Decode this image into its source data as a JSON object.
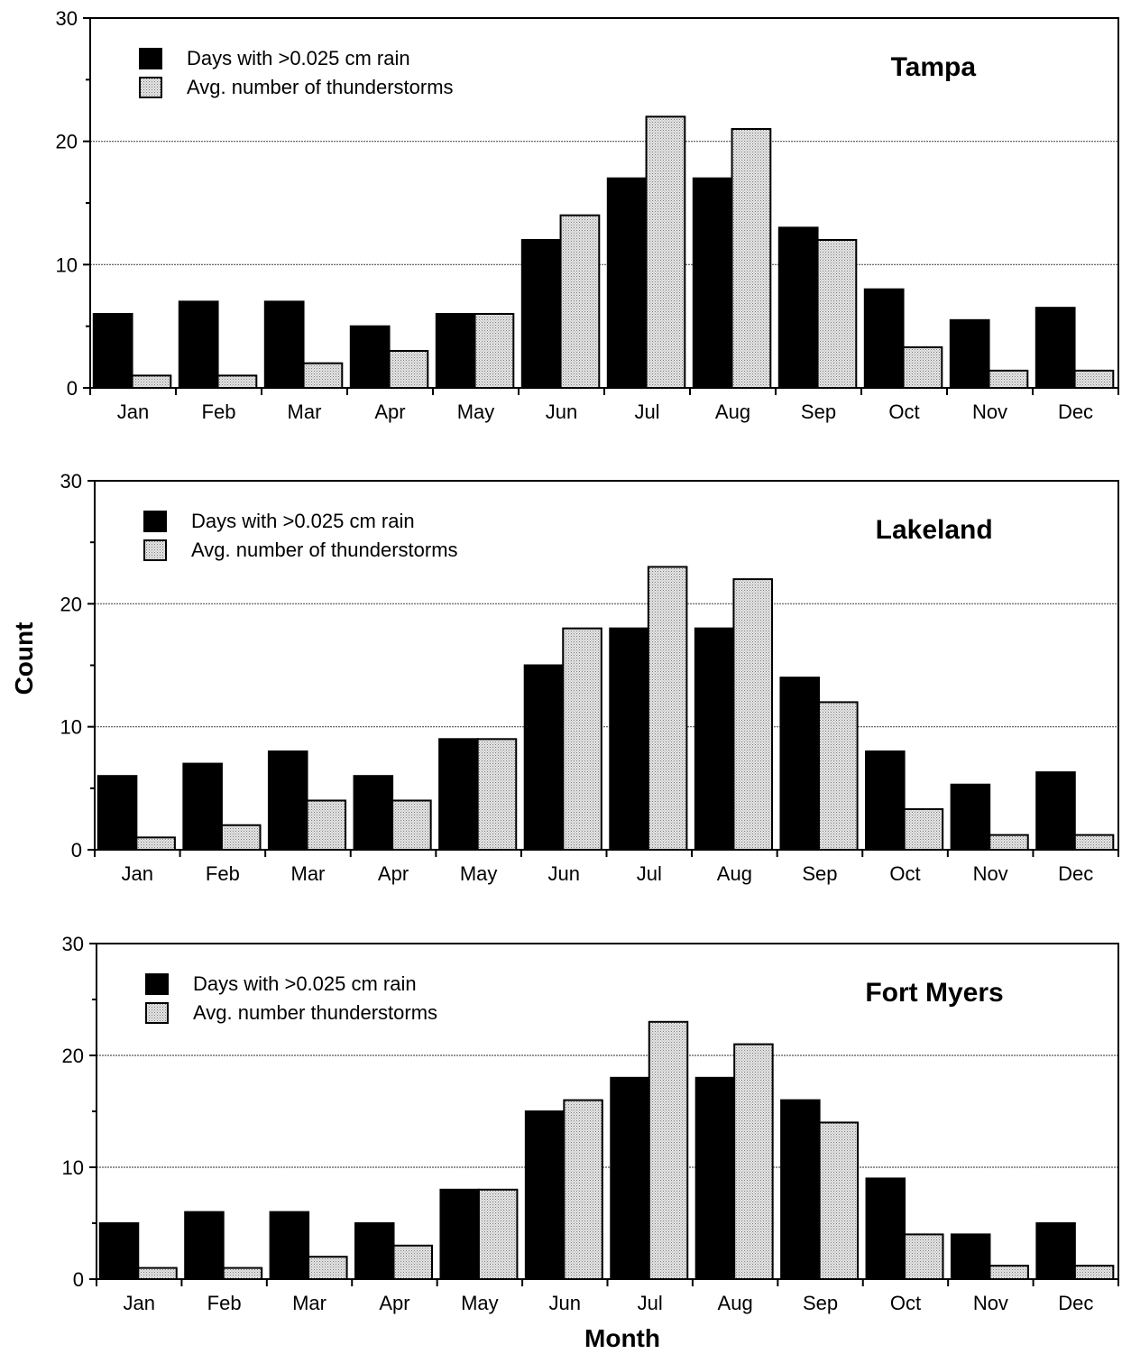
{
  "chart_data": {
    "type": "bar",
    "ylabel": "Count",
    "xlabel": "Month",
    "ylim": [
      0,
      30
    ],
    "yticks": [
      0,
      10,
      20,
      30
    ],
    "grid": true,
    "legend_position": "top-left",
    "categories": [
      "Jan",
      "Feb",
      "Mar",
      "Apr",
      "May",
      "Jun",
      "Jul",
      "Aug",
      "Sep",
      "Oct",
      "Nov",
      "Dec"
    ],
    "colors": {
      "rain": "#000000",
      "thunder": "#d2d2d2",
      "grid": "#555555"
    },
    "panels": [
      {
        "title": "Tampa",
        "series": [
          {
            "name": "Days with >0.025 cm rain",
            "values": [
              6,
              7,
              7,
              5,
              6,
              12,
              17,
              17,
              13,
              8,
              5.5,
              6.5
            ]
          },
          {
            "name": "Avg. number of thunderstorms",
            "values": [
              1,
              1,
              2,
              3,
              6,
              14,
              22,
              21,
              12,
              3.3,
              1.4,
              1.4
            ]
          }
        ]
      },
      {
        "title": "Lakeland",
        "series": [
          {
            "name": "Days with >0.025 cm rain",
            "values": [
              6,
              7,
              8,
              6,
              9,
              15,
              18,
              18,
              14,
              8,
              5.3,
              6.3
            ]
          },
          {
            "name": "Avg. number of thunderstorms",
            "values": [
              1,
              2,
              4,
              4,
              9,
              18,
              23,
              22,
              12,
              3.3,
              1.2,
              1.2
            ]
          }
        ]
      },
      {
        "title": "Fort Myers",
        "series": [
          {
            "name": "Days with >0.025 cm rain",
            "values": [
              5,
              6,
              6,
              5,
              8,
              15,
              18,
              18,
              16,
              9,
              4,
              5
            ]
          },
          {
            "name": "Avg. number thunderstorms",
            "values": [
              1,
              1,
              2,
              3,
              8,
              16,
              23,
              21,
              14,
              4,
              1.2,
              1.2
            ]
          }
        ]
      }
    ]
  }
}
